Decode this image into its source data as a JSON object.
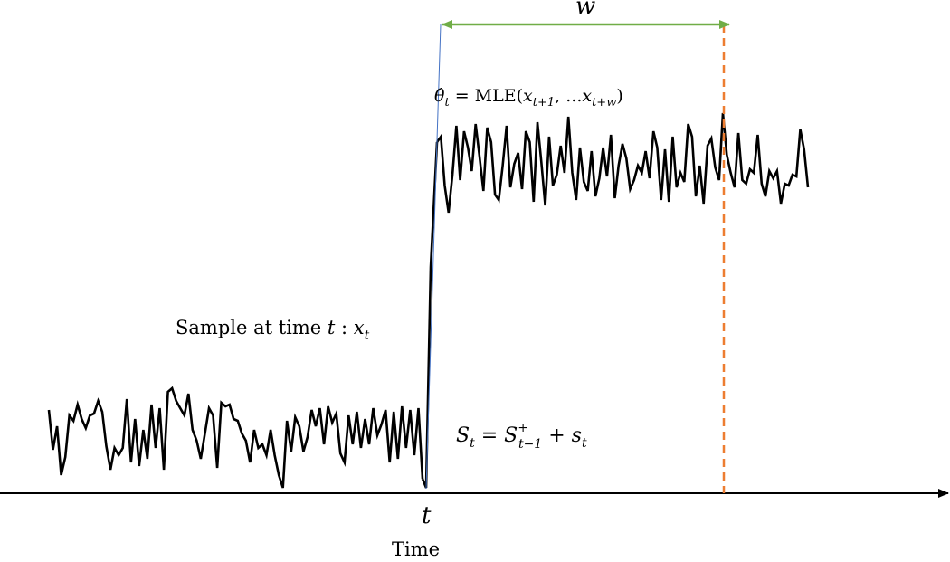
{
  "labels": {
    "window_symbol": "w",
    "mle_theta": "θ̂",
    "mle_sub": "t",
    "mle_eq": " = MLE(",
    "mle_x1": "x",
    "mle_x1_sub": "t+1",
    "mle_sep": ", ...",
    "mle_x2": "x",
    "mle_x2_sub": "t+w",
    "mle_close": ")",
    "sample_text": "Sample at time ",
    "sample_t": "t",
    "sample_colon": " : ",
    "sample_x": "x",
    "sample_x_sub": "t",
    "cusum_S": "S",
    "cusum_S_sub": "t",
    "cusum_eq": " = ",
    "cusum_S2": "S",
    "cusum_sup": "+",
    "cusum_S2_sub": "t−1",
    "cusum_plus": " + ",
    "cusum_s": "s",
    "cusum_s_sub": "t",
    "tick_t": "t",
    "axis_label": "Time"
  },
  "colors": {
    "signal": "#000000",
    "axis": "#000000",
    "window_arrow": "#70ad47",
    "window_end": "#ed7d31",
    "change_line": "#4472c4"
  },
  "signal": {
    "before_change": [
      4.1,
      1.9,
      3.2,
      0.5,
      1.5,
      3.8,
      3.5,
      4.4,
      3.6,
      3.1,
      3.8,
      3.9,
      4.6,
      4.0,
      2.1,
      0.8,
      2.0,
      1.6,
      2.0,
      4.7,
      1.2,
      3.6,
      1.0,
      3.0,
      1.4,
      4.4,
      2.0,
      4.2,
      0.8,
      5.1,
      5.3,
      4.6,
      4.2,
      3.8,
      5.0,
      3.0,
      2.4,
      1.4,
      2.8,
      4.2,
      3.8,
      0.9,
      4.5,
      4.3,
      4.4,
      3.6,
      3.5,
      2.8,
      2.4,
      1.2,
      3.0,
      2.0,
      2.2,
      1.6,
      3.0,
      1.6,
      0.5,
      -0.2,
      3.5,
      1.8,
      3.7,
      3.2,
      1.8,
      2.6,
      4.1,
      3.2,
      4.2,
      2.2,
      4.3,
      3.4,
      3.9,
      1.7,
      1.2,
      3.8,
      2.2,
      4.0,
      2.0,
      3.6,
      2.2,
      4.2,
      2.7,
      3.3,
      4.1,
      1.2,
      4.0,
      1.4,
      4.3,
      2.0,
      4.1,
      1.6,
      4.2,
      0.3
    ],
    "after_change": [
      18.9,
      19.2,
      16.5,
      15.0,
      17.1,
      19.8,
      16.8,
      19.5,
      18.6,
      17.3,
      19.9,
      18.1,
      16.2,
      19.7,
      18.9,
      16.0,
      15.7,
      17.6,
      19.8,
      16.4,
      17.7,
      18.3,
      16.3,
      19.5,
      18.9,
      15.6,
      20.0,
      17.8,
      15.4,
      19.2,
      16.5,
      17.1,
      18.7,
      17.2,
      20.3,
      17.2,
      15.7,
      18.6,
      16.7,
      16.2,
      18.4,
      15.9,
      16.9,
      18.6,
      17.0,
      19.3,
      15.8,
      17.6,
      18.8,
      18.0,
      16.3,
      16.8,
      17.6,
      17.2,
      18.4,
      16.9,
      19.5,
      18.6,
      15.7,
      18.5,
      15.6,
      19.2,
      16.4,
      17.2,
      16.7,
      19.9,
      19.2,
      15.9,
      17.6,
      15.5,
      18.7,
      19.1,
      17.5,
      16.8,
      17.1,
      18.2,
      17.2,
      16.4,
      19.4,
      16.8,
      16.6,
      17.4,
      17.2,
      19.3,
      16.6,
      15.9,
      17.3,
      16.9,
      17.3,
      15.5,
      16.6,
      16.5,
      17.1,
      17.0,
      19.6,
      18.5,
      16.4
    ],
    "spike_at_window": 20.5,
    "change_value": 17.0
  }
}
